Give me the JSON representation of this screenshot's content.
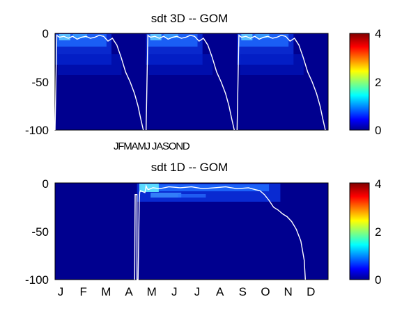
{
  "chart_data": [
    {
      "type": "heatmap",
      "title": "sdt 3D   -- GOM",
      "xlabel": "",
      "ylabel": "",
      "ylim": [
        -100,
        0
      ],
      "yticks": [
        "0",
        "-50",
        "-100"
      ],
      "x_tick_text": "JFMAMJ JASOND",
      "colorbar": {
        "range": [
          0,
          4
        ],
        "ticks": [
          "4",
          "2",
          "0"
        ]
      },
      "years": 3,
      "mixed_layer_line": {
        "description_units": "depth (m) vs fraction of year",
        "x": [
          0.0,
          0.02,
          0.05,
          0.1,
          0.15,
          0.2,
          0.25,
          0.3,
          0.35,
          0.4,
          0.45,
          0.5,
          0.55,
          0.6,
          0.65,
          0.7,
          0.75,
          0.8,
          0.85,
          0.9,
          0.94,
          0.97,
          1.0
        ],
        "y": [
          -100,
          -2,
          -4,
          -3,
          -5,
          -3,
          -6,
          -4,
          -3,
          -5,
          -4,
          -2,
          -3,
          -8,
          -5,
          -12,
          -25,
          -40,
          -50,
          -62,
          -75,
          -88,
          -100
        ]
      }
    },
    {
      "type": "heatmap",
      "title": "sdt 1D   -- GOM",
      "xlabel": "",
      "ylabel": "",
      "ylim": [
        -100,
        0
      ],
      "yticks": [
        "0",
        "-50",
        "-100"
      ],
      "categories": [
        "J",
        "F",
        "M",
        "A",
        "M",
        "J",
        "J",
        "A",
        "S",
        "O",
        "N",
        "D"
      ],
      "colorbar": {
        "range": [
          0,
          4
        ],
        "ticks": [
          "4",
          "2",
          "0"
        ]
      },
      "mixed_layer_line": {
        "x_units": "month index (0 = Jan 1)",
        "x": [
          3.5,
          3.52,
          3.6,
          3.6,
          3.65,
          3.7,
          3.72,
          3.75,
          3.95,
          4.0,
          4.05,
          4.1,
          4.3,
          4.6,
          5.0,
          5.5,
          6.0,
          6.5,
          7.0,
          7.5,
          8.0,
          8.5,
          8.8,
          9.0,
          9.2,
          9.4,
          9.6,
          9.8,
          10.0,
          10.2,
          10.4,
          10.6,
          10.8,
          10.95,
          11.0
        ],
        "y": [
          -100,
          -12,
          -12,
          -100,
          -100,
          -18,
          -10,
          -8,
          -10,
          -3,
          -6,
          -7,
          -5,
          -6,
          -4,
          -5,
          -4,
          -6,
          -5,
          -4,
          -6,
          -5,
          -7,
          -8,
          -12,
          -18,
          -25,
          -28,
          -32,
          -35,
          -40,
          -48,
          -60,
          -80,
          -100
        ]
      }
    }
  ]
}
